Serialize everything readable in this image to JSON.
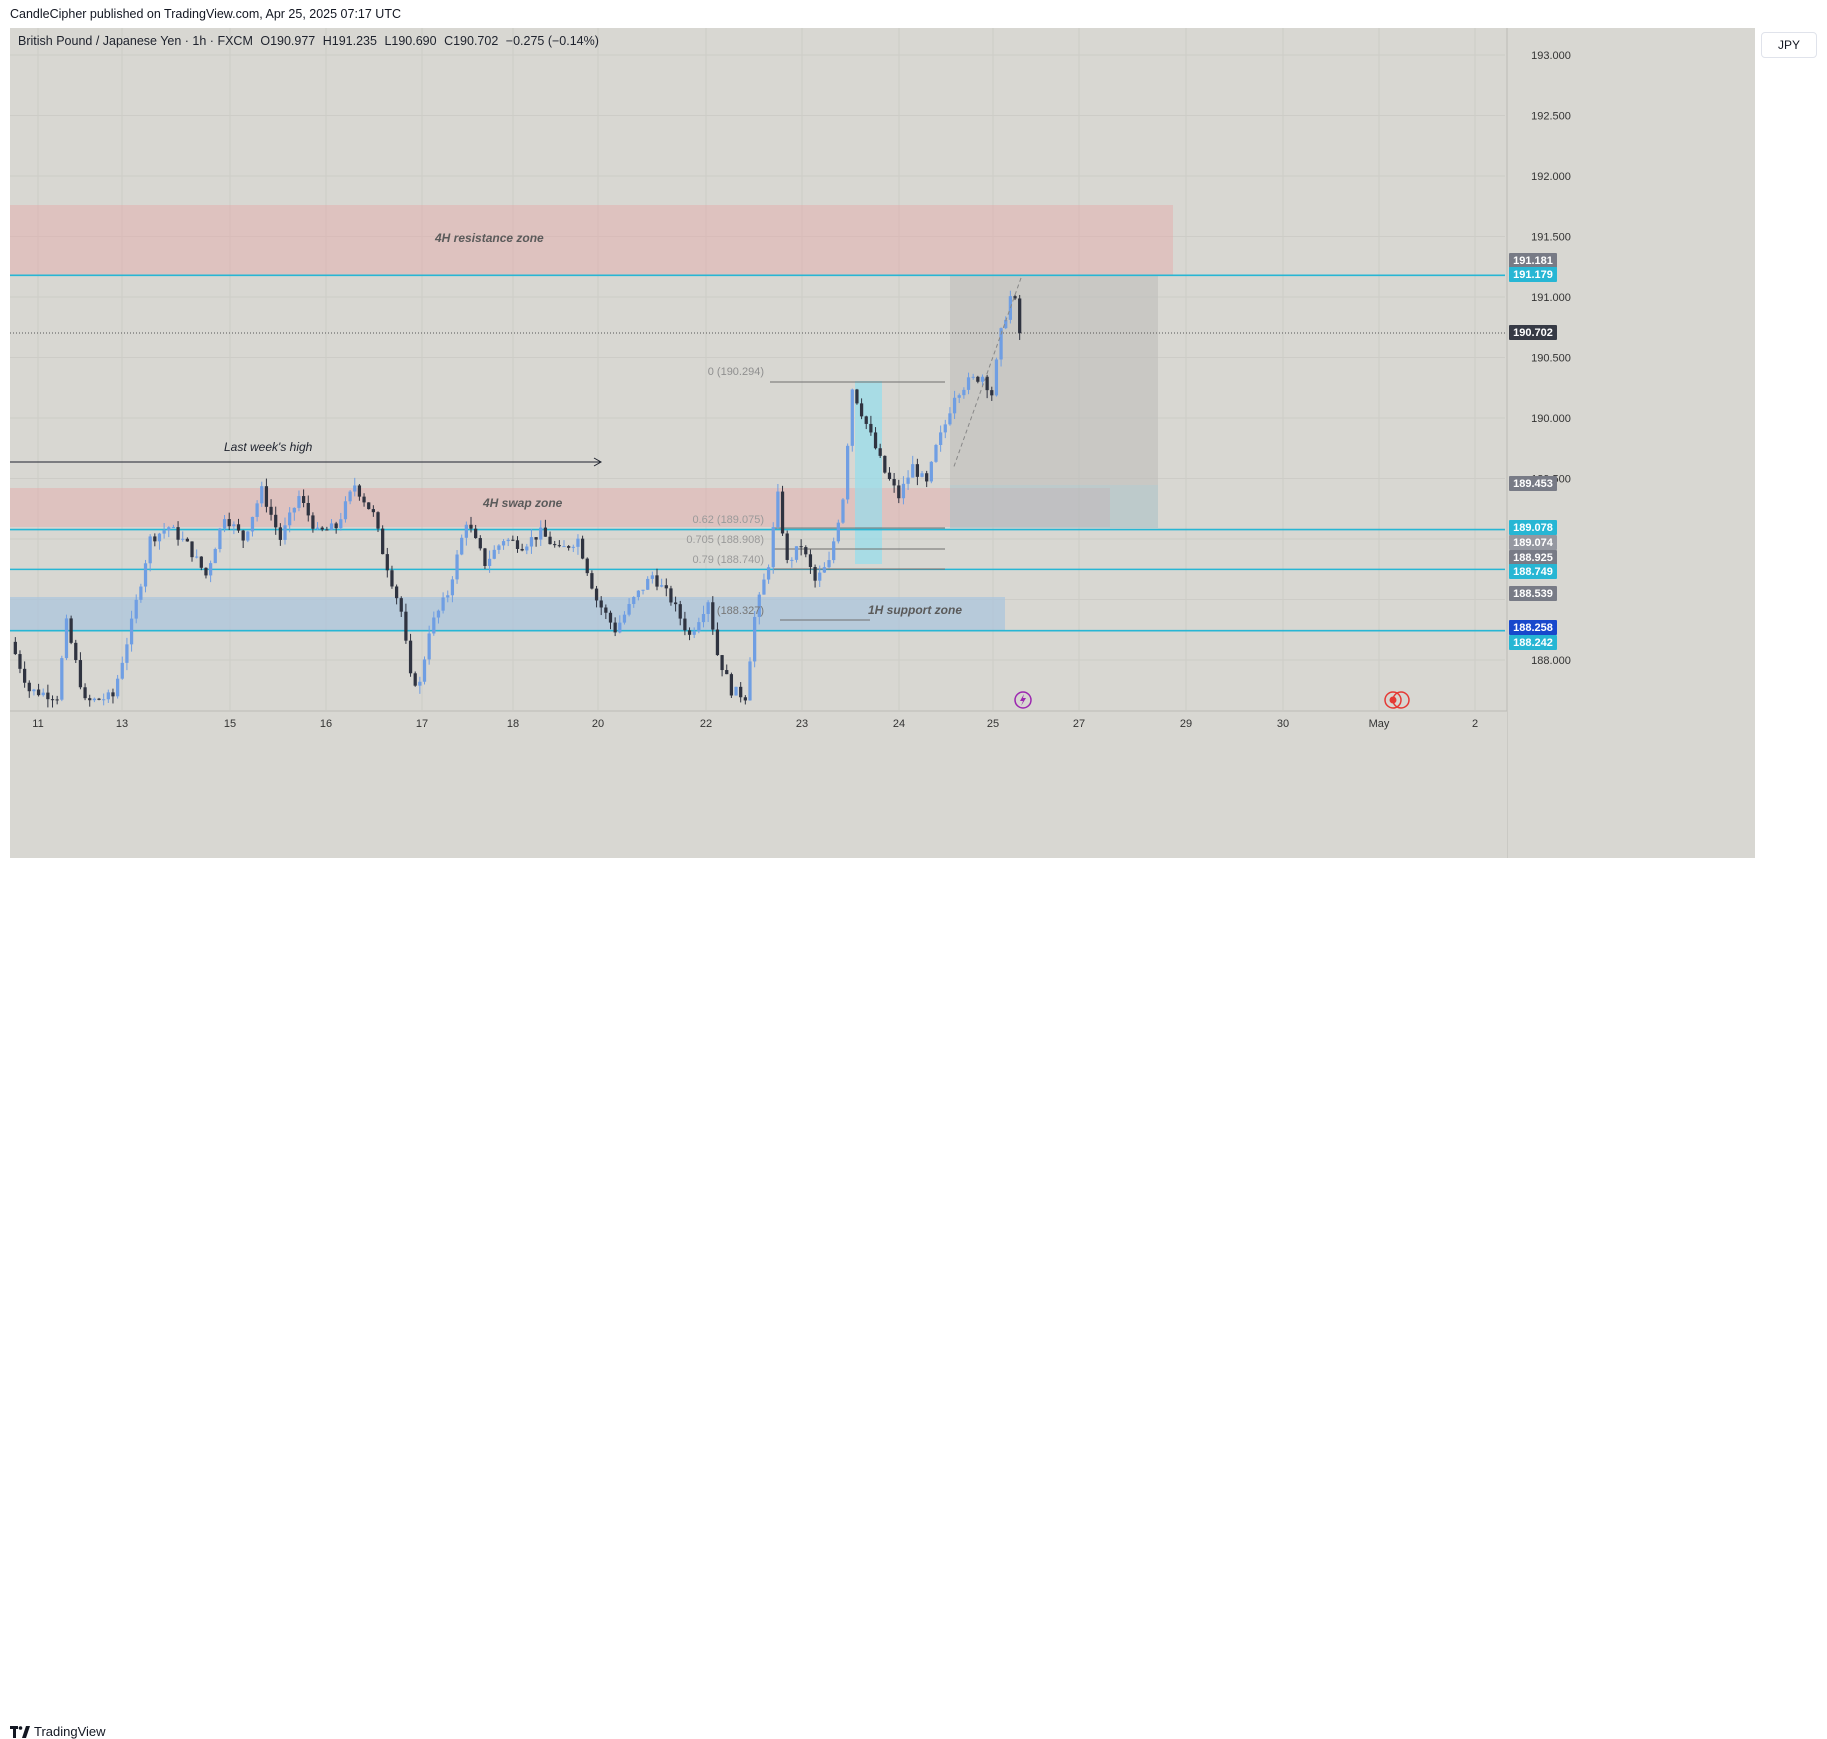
{
  "header": {
    "publisher_text": "CandleCipher published on TradingView.com, Apr 25, 2025 07:17 UTC"
  },
  "legend": {
    "symbol": "British Pound / Japanese Yen · 1h · FXCM",
    "open": "O190.977",
    "high": "H191.235",
    "low": "L190.690",
    "close": "C190.702",
    "change": "−0.275 (−0.14%)"
  },
  "currency_button": "JPY",
  "footer": {
    "brand": "TradingView",
    "logo_icon": "tradingview-logo-icon"
  },
  "colors": {
    "background": "#d8d7d2",
    "candle_up": "#6f9ee3",
    "candle_down": "#2f3340",
    "cyan_line": "#27b6d4",
    "resistance_fill": "#e6a8a8",
    "support_fill": "#a9c4dd",
    "fib_fill": "#8fdff0"
  },
  "chart_data": {
    "type": "candlestick",
    "title": "British Pound / Japanese Yen · 1h · FXCM",
    "ylim": [
      187.6,
      193.1
    ],
    "y_ticks": [
      "193.000",
      "192.500",
      "192.000",
      "191.500",
      "191.000",
      "190.500",
      "190.000",
      "189.500",
      "188.000"
    ],
    "x_ticks": [
      "11",
      "13",
      "15",
      "16",
      "17",
      "18",
      "20",
      "22",
      "23",
      "24",
      "25",
      "27",
      "29",
      "30",
      "May",
      "2"
    ],
    "ohlc_path": [
      [
        0,
        188.15
      ],
      [
        4,
        187.75
      ],
      [
        10,
        187.7
      ],
      [
        12,
        188.3
      ],
      [
        16,
        187.65
      ],
      [
        22,
        187.7
      ],
      [
        26,
        188.3
      ],
      [
        30,
        189.0
      ],
      [
        34,
        189.1
      ],
      [
        38,
        188.95
      ],
      [
        42,
        188.7
      ],
      [
        46,
        189.2
      ],
      [
        50,
        189.0
      ],
      [
        54,
        189.4
      ],
      [
        58,
        189.0
      ],
      [
        62,
        189.35
      ],
      [
        66,
        189.05
      ],
      [
        70,
        189.1
      ],
      [
        74,
        189.45
      ],
      [
        78,
        189.2
      ],
      [
        80,
        188.9
      ],
      [
        84,
        188.4
      ],
      [
        86,
        187.85
      ],
      [
        88,
        187.8
      ],
      [
        90,
        188.25
      ],
      [
        94,
        188.55
      ],
      [
        98,
        189.15
      ],
      [
        102,
        188.8
      ],
      [
        106,
        189.0
      ],
      [
        110,
        188.95
      ],
      [
        114,
        189.05
      ],
      [
        118,
        188.9
      ],
      [
        122,
        189.0
      ],
      [
        126,
        188.5
      ],
      [
        130,
        188.25
      ],
      [
        134,
        188.5
      ],
      [
        138,
        188.7
      ],
      [
        142,
        188.5
      ],
      [
        146,
        188.2
      ],
      [
        150,
        188.5
      ],
      [
        152,
        188.05
      ],
      [
        155,
        187.75
      ],
      [
        158,
        187.7
      ],
      [
        160,
        188.35
      ],
      [
        163,
        188.8
      ],
      [
        165,
        189.35
      ],
      [
        167,
        188.8
      ],
      [
        170,
        188.95
      ],
      [
        173,
        188.65
      ],
      [
        176,
        188.8
      ],
      [
        179,
        189.35
      ],
      [
        181,
        190.25
      ],
      [
        183,
        190.05
      ],
      [
        185,
        189.85
      ],
      [
        188,
        189.55
      ],
      [
        191,
        189.35
      ],
      [
        194,
        189.6
      ],
      [
        197,
        189.45
      ],
      [
        199,
        189.75
      ],
      [
        201,
        189.95
      ],
      [
        203,
        190.2
      ],
      [
        206,
        190.3
      ],
      [
        209,
        190.35
      ],
      [
        211,
        190.2
      ],
      [
        213,
        190.7
      ],
      [
        215,
        191.0
      ],
      [
        216,
        190.95
      ],
      [
        217,
        190.7
      ]
    ],
    "annotations": [
      {
        "label": "4H resistance zone",
        "type": "zone"
      },
      {
        "label": "4H swap zone",
        "type": "zone"
      },
      {
        "label": "1H support zone",
        "type": "zone"
      },
      {
        "label": "Last week's high",
        "type": "line"
      },
      {
        "label": "0 (190.294)",
        "type": "fib"
      },
      {
        "label": "0.62 (189.075)",
        "type": "fib"
      },
      {
        "label": "0.705 (188.908)",
        "type": "fib"
      },
      {
        "label": "0.79 (188.740)",
        "type": "fib"
      },
      {
        "label": "(188.327)",
        "type": "fib"
      }
    ],
    "price_labels": [
      {
        "text": "191.181",
        "value": 191.181,
        "color": "#787b86"
      },
      {
        "text": "191.179",
        "value": 191.179,
        "color": "#27b6d4"
      },
      {
        "text": "190.702",
        "value": 190.702,
        "color": "#363a45"
      },
      {
        "text": "189.453",
        "value": 189.453,
        "color": "#787b86"
      },
      {
        "text": "189.078",
        "value": 189.078,
        "color": "#27b6d4"
      },
      {
        "text": "189.074",
        "value": 189.074,
        "color": "#9598a1"
      },
      {
        "text": "188.925",
        "value": 188.925,
        "color": "#787b86"
      },
      {
        "text": "188.749",
        "value": 188.749,
        "color": "#27b6d4"
      },
      {
        "text": "188.539",
        "value": 188.539,
        "color": "#787b86"
      },
      {
        "text": "188.258",
        "value": 188.258,
        "color": "#1848cc"
      },
      {
        "text": "188.242",
        "value": 188.242,
        "color": "#27b6d4"
      }
    ],
    "horizontal_lines": [
      191.179,
      189.078,
      188.749,
      188.242
    ],
    "icons": [
      "lightning-icon",
      "record-icon"
    ]
  }
}
